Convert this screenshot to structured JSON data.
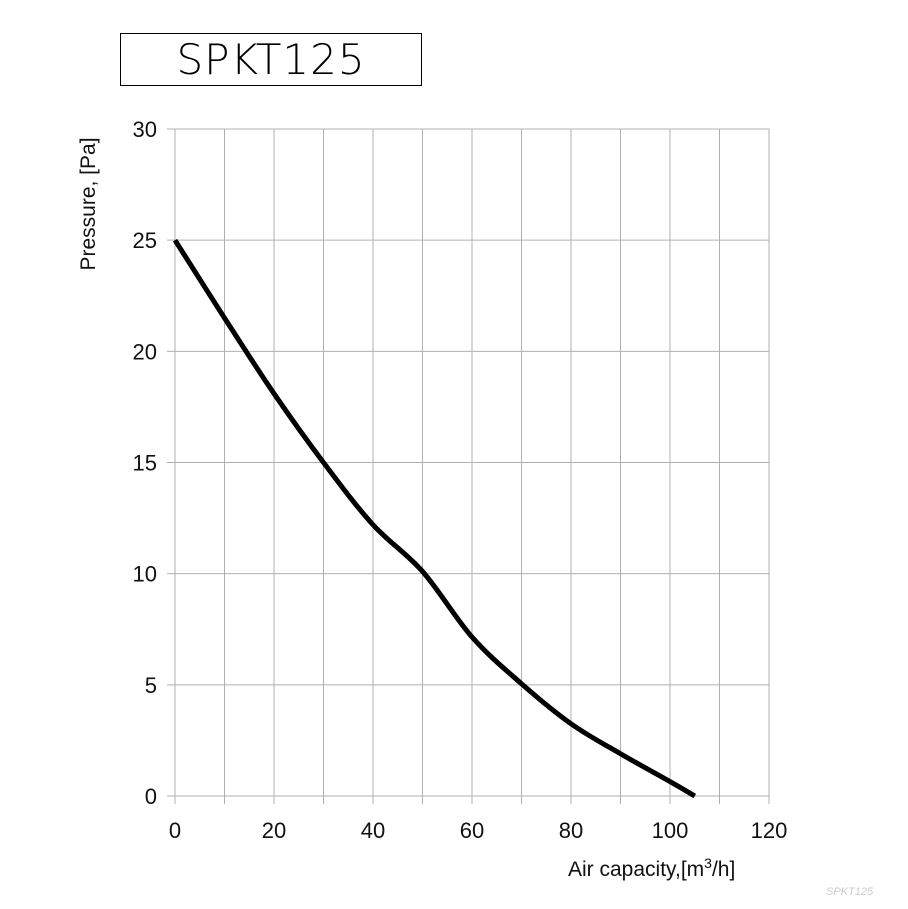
{
  "chart_data": {
    "type": "line",
    "title": "SPKT125",
    "xlabel": "Air capacity,[m³/h]",
    "ylabel": "Pressure, [Pa]",
    "xlim": [
      0,
      120
    ],
    "ylim": [
      0,
      30
    ],
    "xticks": [
      "0",
      "20",
      "40",
      "60",
      "80",
      "100",
      "120"
    ],
    "yticks": [
      "0",
      "5",
      "10",
      "15",
      "20",
      "25",
      "30"
    ],
    "grid": true,
    "line_color": "#000000",
    "grid_color": "#b0b0b0",
    "series": [
      {
        "x": [
          0,
          10,
          20,
          30,
          40,
          50,
          60,
          70,
          80,
          90,
          100,
          105
        ],
        "y": [
          25,
          21.5,
          18.1,
          15,
          12.2,
          10.1,
          7.15,
          5.05,
          3.25,
          1.9,
          0.65,
          0
        ]
      }
    ],
    "watermark": "SPKT125"
  }
}
